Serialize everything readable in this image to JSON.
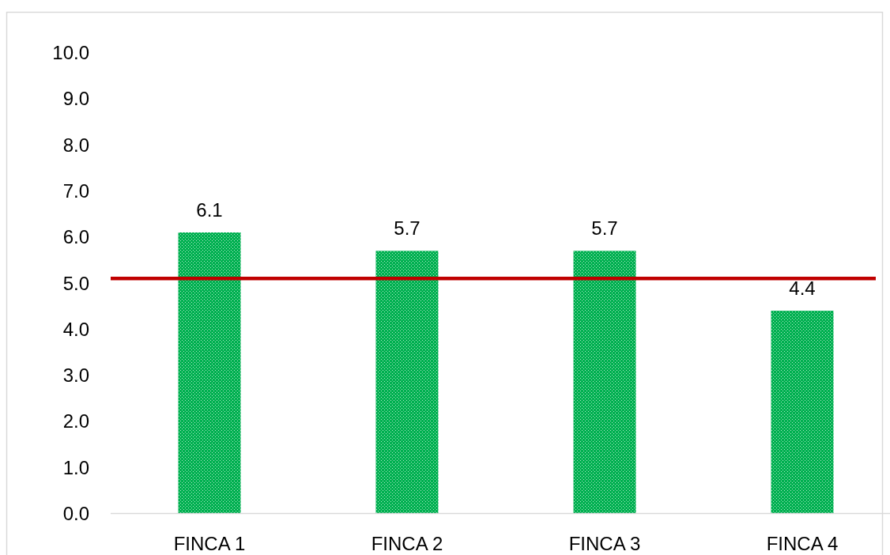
{
  "chart_data": {
    "type": "bar",
    "categories": [
      "FINCA 1",
      "FINCA 2",
      "FINCA 3",
      "FINCA 4"
    ],
    "values": [
      6.1,
      5.7,
      5.7,
      4.4
    ],
    "color": "#00b050",
    "ylim": [
      0,
      10
    ],
    "yticks": [
      {
        "value": 0,
        "label": "0.0"
      },
      {
        "value": 1,
        "label": "1.0"
      },
      {
        "value": 2,
        "label": "2.0"
      },
      {
        "value": 3,
        "label": "3.0"
      },
      {
        "value": 4,
        "label": "4.0"
      },
      {
        "value": 5,
        "label": "5.0"
      },
      {
        "value": 6,
        "label": "6.0"
      },
      {
        "value": 7,
        "label": "7.0"
      },
      {
        "value": 8,
        "label": "8.0"
      },
      {
        "value": 9,
        "label": "9.0"
      },
      {
        "value": 10,
        "label": "10.0"
      }
    ],
    "data_labels": true,
    "ref_lines": [
      {
        "axis": "y",
        "value": 5.1,
        "color": "#c00000"
      }
    ]
  }
}
